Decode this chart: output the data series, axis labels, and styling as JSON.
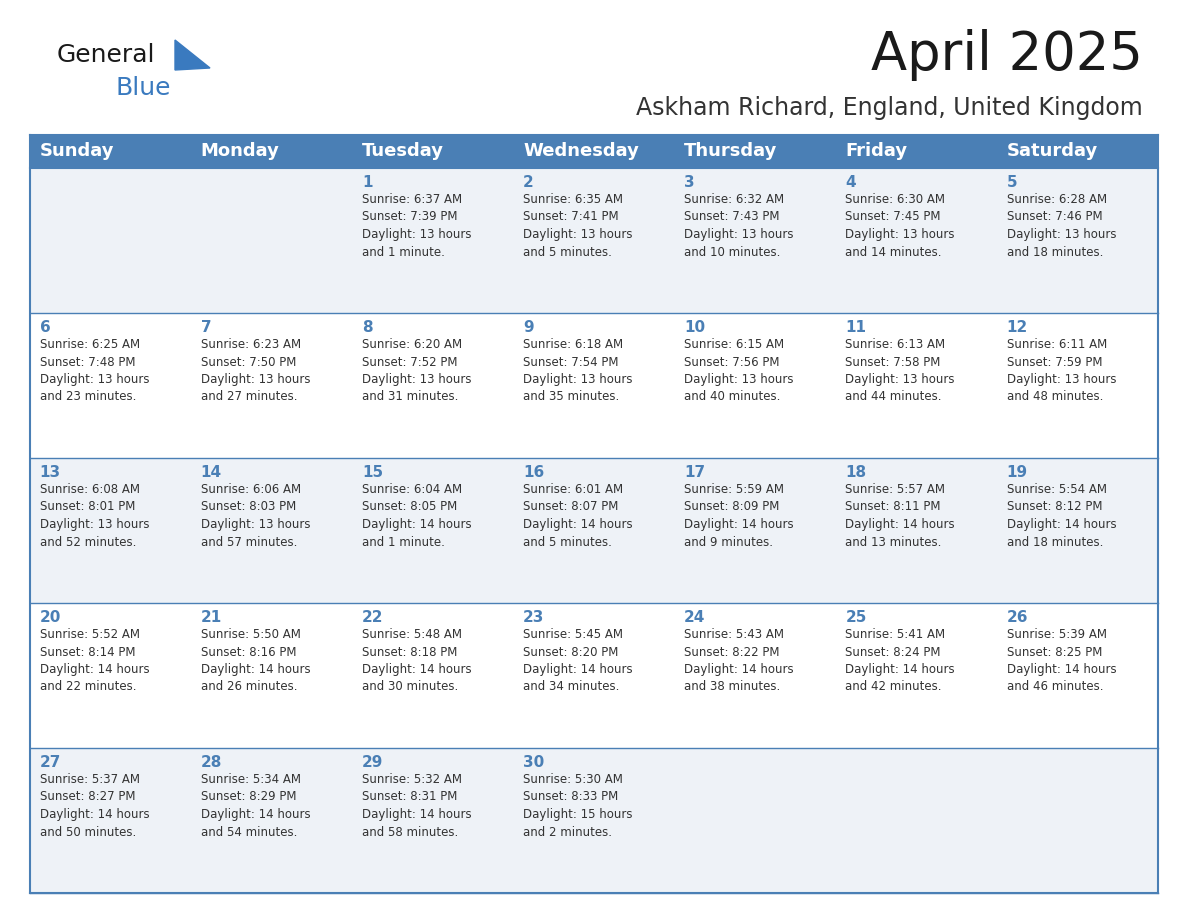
{
  "title": "April 2025",
  "subtitle": "Askham Richard, England, United Kingdom",
  "header_bg": "#4a7fb5",
  "header_text": "#ffffff",
  "row_bg_odd": "#eef2f7",
  "row_bg_even": "#ffffff",
  "sep_line_color": "#4a7fb5",
  "day_number_color": "#4a7fb5",
  "text_color": "#333333",
  "days_of_week": [
    "Sunday",
    "Monday",
    "Tuesday",
    "Wednesday",
    "Thursday",
    "Friday",
    "Saturday"
  ],
  "weeks": [
    [
      {
        "day": "",
        "info": ""
      },
      {
        "day": "",
        "info": ""
      },
      {
        "day": "1",
        "info": "Sunrise: 6:37 AM\nSunset: 7:39 PM\nDaylight: 13 hours\nand 1 minute."
      },
      {
        "day": "2",
        "info": "Sunrise: 6:35 AM\nSunset: 7:41 PM\nDaylight: 13 hours\nand 5 minutes."
      },
      {
        "day": "3",
        "info": "Sunrise: 6:32 AM\nSunset: 7:43 PM\nDaylight: 13 hours\nand 10 minutes."
      },
      {
        "day": "4",
        "info": "Sunrise: 6:30 AM\nSunset: 7:45 PM\nDaylight: 13 hours\nand 14 minutes."
      },
      {
        "day": "5",
        "info": "Sunrise: 6:28 AM\nSunset: 7:46 PM\nDaylight: 13 hours\nand 18 minutes."
      }
    ],
    [
      {
        "day": "6",
        "info": "Sunrise: 6:25 AM\nSunset: 7:48 PM\nDaylight: 13 hours\nand 23 minutes."
      },
      {
        "day": "7",
        "info": "Sunrise: 6:23 AM\nSunset: 7:50 PM\nDaylight: 13 hours\nand 27 minutes."
      },
      {
        "day": "8",
        "info": "Sunrise: 6:20 AM\nSunset: 7:52 PM\nDaylight: 13 hours\nand 31 minutes."
      },
      {
        "day": "9",
        "info": "Sunrise: 6:18 AM\nSunset: 7:54 PM\nDaylight: 13 hours\nand 35 minutes."
      },
      {
        "day": "10",
        "info": "Sunrise: 6:15 AM\nSunset: 7:56 PM\nDaylight: 13 hours\nand 40 minutes."
      },
      {
        "day": "11",
        "info": "Sunrise: 6:13 AM\nSunset: 7:58 PM\nDaylight: 13 hours\nand 44 minutes."
      },
      {
        "day": "12",
        "info": "Sunrise: 6:11 AM\nSunset: 7:59 PM\nDaylight: 13 hours\nand 48 minutes."
      }
    ],
    [
      {
        "day": "13",
        "info": "Sunrise: 6:08 AM\nSunset: 8:01 PM\nDaylight: 13 hours\nand 52 minutes."
      },
      {
        "day": "14",
        "info": "Sunrise: 6:06 AM\nSunset: 8:03 PM\nDaylight: 13 hours\nand 57 minutes."
      },
      {
        "day": "15",
        "info": "Sunrise: 6:04 AM\nSunset: 8:05 PM\nDaylight: 14 hours\nand 1 minute."
      },
      {
        "day": "16",
        "info": "Sunrise: 6:01 AM\nSunset: 8:07 PM\nDaylight: 14 hours\nand 5 minutes."
      },
      {
        "day": "17",
        "info": "Sunrise: 5:59 AM\nSunset: 8:09 PM\nDaylight: 14 hours\nand 9 minutes."
      },
      {
        "day": "18",
        "info": "Sunrise: 5:57 AM\nSunset: 8:11 PM\nDaylight: 14 hours\nand 13 minutes."
      },
      {
        "day": "19",
        "info": "Sunrise: 5:54 AM\nSunset: 8:12 PM\nDaylight: 14 hours\nand 18 minutes."
      }
    ],
    [
      {
        "day": "20",
        "info": "Sunrise: 5:52 AM\nSunset: 8:14 PM\nDaylight: 14 hours\nand 22 minutes."
      },
      {
        "day": "21",
        "info": "Sunrise: 5:50 AM\nSunset: 8:16 PM\nDaylight: 14 hours\nand 26 minutes."
      },
      {
        "day": "22",
        "info": "Sunrise: 5:48 AM\nSunset: 8:18 PM\nDaylight: 14 hours\nand 30 minutes."
      },
      {
        "day": "23",
        "info": "Sunrise: 5:45 AM\nSunset: 8:20 PM\nDaylight: 14 hours\nand 34 minutes."
      },
      {
        "day": "24",
        "info": "Sunrise: 5:43 AM\nSunset: 8:22 PM\nDaylight: 14 hours\nand 38 minutes."
      },
      {
        "day": "25",
        "info": "Sunrise: 5:41 AM\nSunset: 8:24 PM\nDaylight: 14 hours\nand 42 minutes."
      },
      {
        "day": "26",
        "info": "Sunrise: 5:39 AM\nSunset: 8:25 PM\nDaylight: 14 hours\nand 46 minutes."
      }
    ],
    [
      {
        "day": "27",
        "info": "Sunrise: 5:37 AM\nSunset: 8:27 PM\nDaylight: 14 hours\nand 50 minutes."
      },
      {
        "day": "28",
        "info": "Sunrise: 5:34 AM\nSunset: 8:29 PM\nDaylight: 14 hours\nand 54 minutes."
      },
      {
        "day": "29",
        "info": "Sunrise: 5:32 AM\nSunset: 8:31 PM\nDaylight: 14 hours\nand 58 minutes."
      },
      {
        "day": "30",
        "info": "Sunrise: 5:30 AM\nSunset: 8:33 PM\nDaylight: 15 hours\nand 2 minutes."
      },
      {
        "day": "",
        "info": ""
      },
      {
        "day": "",
        "info": ""
      },
      {
        "day": "",
        "info": ""
      }
    ]
  ],
  "logo_color_general": "#1a1a1a",
  "logo_color_blue": "#3a7abf",
  "logo_triangle_color": "#3a7abf",
  "title_fontsize": 38,
  "subtitle_fontsize": 17,
  "header_fontsize": 13,
  "day_number_fontsize": 11,
  "cell_text_fontsize": 8.5
}
